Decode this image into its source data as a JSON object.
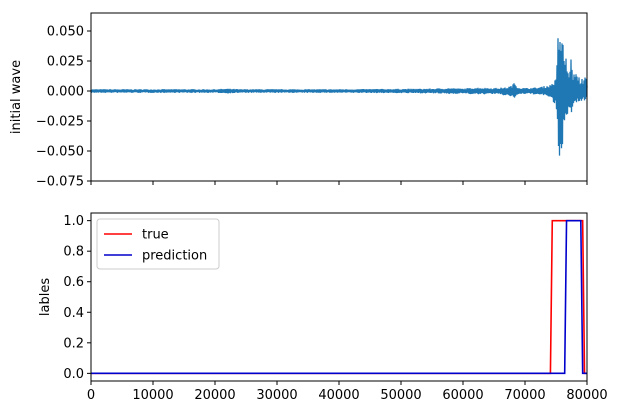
{
  "chart_data": [
    {
      "type": "line",
      "ylabel": "initial wave",
      "xlabel": "",
      "xlim": [
        0,
        80000
      ],
      "ylim": [
        -0.075,
        0.065
      ],
      "yticks": [
        0.05,
        0.025,
        0.0,
        -0.025,
        -0.05,
        -0.075
      ],
      "ytick_labels": [
        "0.050",
        "0.025",
        "0.000",
        "−0.025",
        "−0.050",
        "−0.075"
      ],
      "xticks": [
        0,
        10000,
        20000,
        30000,
        40000,
        50000,
        60000,
        70000,
        80000
      ],
      "show_xtick_labels": false,
      "grid": false,
      "series": [
        {
          "color": "#1f77b4",
          "x": [
            0,
            10000,
            20000,
            22000,
            24000,
            30000,
            40000,
            50000,
            55000,
            58000,
            60000,
            62000,
            65000,
            67000,
            68000,
            68300,
            68600,
            69000,
            70000,
            72000,
            74000,
            75000,
            75200,
            75300,
            75400,
            75500,
            75600,
            75700,
            75800,
            75900,
            76000,
            76100,
            76200,
            76300,
            76400,
            76500,
            76600,
            76700,
            76800,
            77000,
            77200,
            77400,
            77600,
            77800,
            78000,
            78200,
            78400,
            78600,
            78800,
            79000,
            79200,
            79400,
            79600,
            79800,
            80000
          ],
          "envelope_upper": [
            0.0015,
            0.0015,
            0.0015,
            0.002,
            0.0015,
            0.0015,
            0.0015,
            0.0018,
            0.002,
            0.0025,
            0.002,
            0.003,
            0.0025,
            0.003,
            0.005,
            0.008,
            0.005,
            0.003,
            0.0025,
            0.003,
            0.005,
            0.01,
            0.03,
            0.045,
            0.05,
            0.052,
            0.06,
            0.055,
            0.045,
            0.05,
            0.04,
            0.045,
            0.03,
            0.038,
            0.03,
            0.025,
            0.033,
            0.035,
            0.018,
            0.015,
            0.023,
            0.028,
            0.02,
            0.014,
            0.015,
            0.016,
            0.012,
            0.015,
            0.01,
            0.008,
            0.012,
            0.009,
            0.014,
            0.012,
            0.005
          ],
          "envelope_lower": [
            -0.0015,
            -0.0015,
            -0.0015,
            -0.002,
            -0.0015,
            -0.0015,
            -0.0015,
            -0.0018,
            -0.002,
            -0.0025,
            -0.002,
            -0.003,
            -0.0025,
            -0.004,
            -0.005,
            -0.006,
            -0.004,
            -0.003,
            -0.0025,
            -0.003,
            -0.005,
            -0.015,
            -0.035,
            -0.05,
            -0.055,
            -0.06,
            -0.068,
            -0.058,
            -0.052,
            -0.048,
            -0.05,
            -0.04,
            -0.042,
            -0.035,
            -0.03,
            -0.032,
            -0.028,
            -0.03,
            -0.025,
            -0.018,
            -0.022,
            -0.025,
            -0.015,
            -0.012,
            -0.014,
            -0.01,
            -0.012,
            -0.009,
            -0.01,
            -0.008,
            -0.01,
            -0.009,
            -0.008,
            -0.007,
            -0.004
          ]
        }
      ]
    },
    {
      "type": "line",
      "ylabel": "lables",
      "xlabel": "",
      "xlim": [
        0,
        80000
      ],
      "ylim": [
        -0.05,
        1.05
      ],
      "yticks": [
        0.0,
        0.2,
        0.4,
        0.6,
        0.8,
        1.0
      ],
      "ytick_labels": [
        "0.0",
        "0.2",
        "0.4",
        "0.6",
        "0.8",
        "1.0"
      ],
      "xticks": [
        0,
        10000,
        20000,
        30000,
        40000,
        50000,
        60000,
        70000,
        80000
      ],
      "xtick_labels": [
        "0",
        "10000",
        "20000",
        "30000",
        "40000",
        "50000",
        "60000",
        "70000",
        "80000"
      ],
      "grid": false,
      "legend": {
        "placement": "upper-left"
      },
      "series": [
        {
          "name": "true",
          "color": "#ff0000",
          "x": [
            0,
            74100,
            74400,
            79300,
            79600,
            80000
          ],
          "y": [
            0,
            0,
            1,
            1,
            0,
            0
          ]
        },
        {
          "name": "prediction",
          "color": "#0000cc",
          "x": [
            0,
            76400,
            76700,
            79000,
            79300,
            80000
          ],
          "y": [
            0,
            0,
            1,
            1,
            0,
            0
          ]
        }
      ]
    }
  ]
}
